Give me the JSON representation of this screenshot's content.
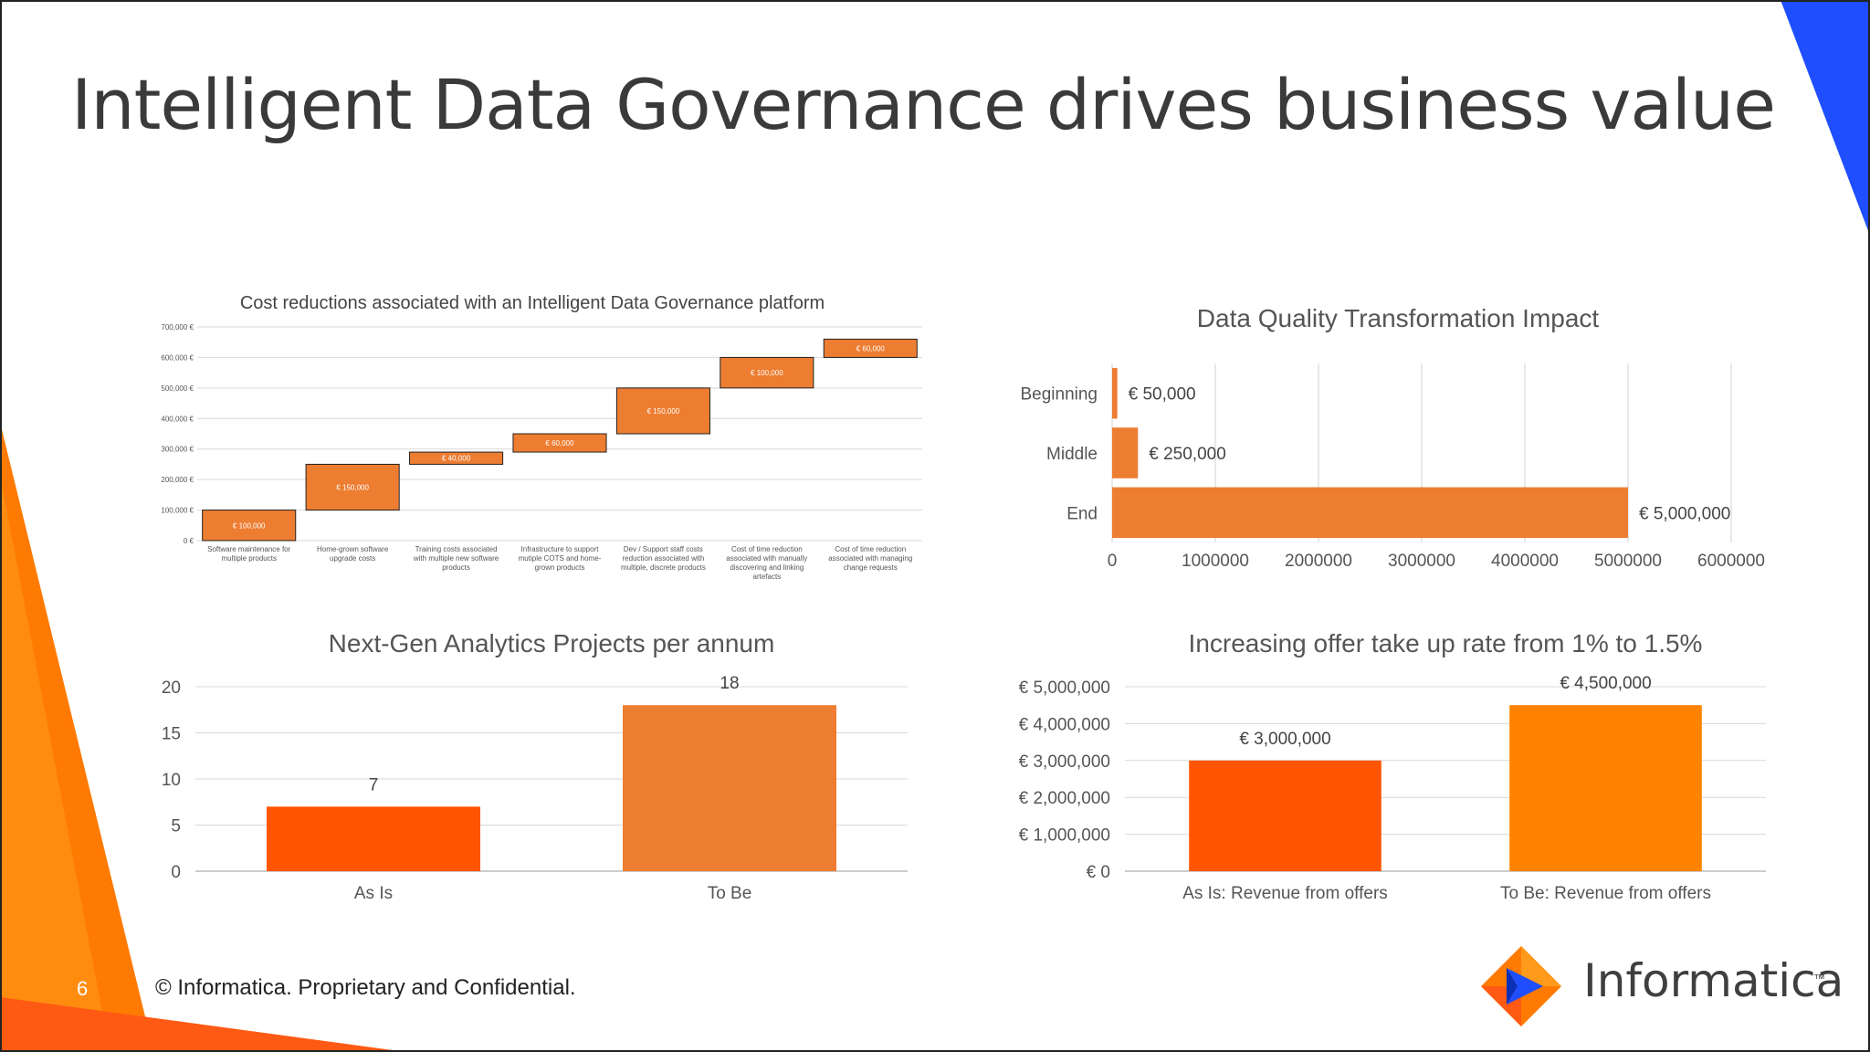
{
  "slide": {
    "title": "Intelligent Data Governance drives business value",
    "page_number": "6",
    "footer": "© Informatica. Proprietary and Confidential.",
    "brand": "Informatica",
    "trademark": "™",
    "colors": {
      "orange": "#ED7D31",
      "deep_orange": "#FF5500",
      "bright_orange": "#FF8200",
      "blue": "#1F4EFF"
    }
  },
  "chart_data": [
    {
      "id": "waterfall",
      "type": "bar",
      "subtype": "waterfall",
      "title": "Cost reductions associated with an Intelligent Data Governance platform",
      "ylim": [
        0,
        700000
      ],
      "yticks": [
        0,
        100000,
        200000,
        300000,
        400000,
        500000,
        600000,
        700000
      ],
      "ytick_labels": [
        "0 €",
        "100,000 €",
        "200,000 €",
        "300,000 €",
        "400,000 €",
        "500,000 €",
        "600,000 €",
        "700,000 €"
      ],
      "categories": [
        [
          "Software maintenance for",
          "multiple products"
        ],
        [
          "Home-grown software",
          "upgrade costs"
        ],
        [
          "Training costs associated",
          "with multiple new software",
          "products"
        ],
        [
          "Infrastructure to support",
          "mutiple COTS and home-",
          "grown products"
        ],
        [
          "Dev / Support staff costs",
          "reduction associated with",
          "multiple, discrete products"
        ],
        [
          "Cost of time reduction",
          "associated with manually",
          "discovering and linking",
          "artefacts"
        ],
        [
          "Cost of time reduction",
          "associated with managing",
          "change requests"
        ]
      ],
      "values": [
        100000,
        150000,
        40000,
        60000,
        150000,
        100000,
        60000
      ],
      "data_labels": [
        "€ 100,000",
        "€ 150,000",
        "€ 40,000",
        "€ 60,000",
        "€ 150,000",
        "€ 100,000",
        "€ 60,000"
      ],
      "color": "#ED7D31",
      "grid": true
    },
    {
      "id": "dq",
      "type": "bar",
      "orientation": "horizontal",
      "title": "Data Quality Transformation  Impact",
      "categories": [
        "Beginning",
        "Middle",
        "End"
      ],
      "values": [
        50000,
        250000,
        5000000
      ],
      "data_labels": [
        "€ 50,000",
        "€ 250,000",
        "€ 5,000,000"
      ],
      "xlim": [
        0,
        6000000
      ],
      "xticks": [
        0,
        1000000,
        2000000,
        3000000,
        4000000,
        5000000,
        6000000
      ],
      "xtick_labels": [
        "0",
        "1000000",
        "2000000",
        "3000000",
        "4000000",
        "5000000",
        "6000000"
      ],
      "color": "#ED7D31",
      "grid": true
    },
    {
      "id": "analytics",
      "type": "bar",
      "title": "Next-Gen Analytics Projects per annum",
      "categories": [
        "As Is",
        "To Be"
      ],
      "values": [
        7,
        18
      ],
      "data_labels": [
        "7",
        "18"
      ],
      "colors": [
        "#FF5500",
        "#ED7D31"
      ],
      "ylim": [
        0,
        20
      ],
      "yticks": [
        0,
        5,
        10,
        15,
        20
      ],
      "ytick_labels": [
        "0",
        "5",
        "10",
        "15",
        "20"
      ],
      "grid": true
    },
    {
      "id": "offer",
      "type": "bar",
      "title": "Increasing offer take up rate from 1% to 1.5%",
      "categories": [
        "As Is: Revenue from offers",
        "To Be: Revenue from offers"
      ],
      "values": [
        3000000,
        4500000
      ],
      "data_labels": [
        "€ 3,000,000",
        "€ 4,500,000"
      ],
      "colors": [
        "#FF5500",
        "#FF8200"
      ],
      "ylim": [
        0,
        5000000
      ],
      "yticks": [
        0,
        1000000,
        2000000,
        3000000,
        4000000,
        5000000
      ],
      "ytick_labels": [
        "€ 0",
        "€ 1,000,000",
        "€ 2,000,000",
        "€ 3,000,000",
        "€ 4,000,000",
        "€ 5,000,000"
      ],
      "grid": true
    }
  ]
}
